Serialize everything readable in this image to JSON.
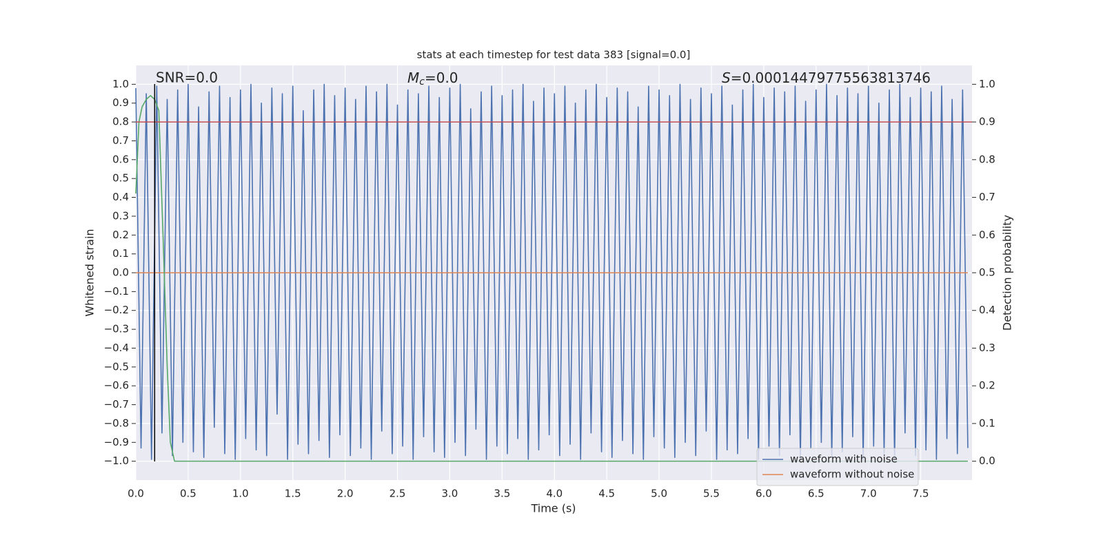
{
  "chart_data": {
    "type": "line",
    "title": "stats at each timestep for test data 383 [signal=0.0]",
    "xlabel": "Time (s)",
    "ylabel": "Whitened strain",
    "y2label": "Detection probability",
    "annotations": {
      "snr": "SNR=0.0",
      "mc_symbol": "M",
      "mc_subscript": "c",
      "mc_value": "=0.0",
      "s_symbol": "S",
      "s_value": "=0.00014479775563813746"
    },
    "xlim": [
      0,
      7.99
    ],
    "ylim": [
      -1.1,
      1.1
    ],
    "y2lim": [
      -0.05,
      1.05
    ],
    "xticks": [
      {
        "value": 0,
        "label": "0.0"
      },
      0.5,
      {
        "value": 1,
        "label": "1.0"
      },
      1.5,
      {
        "value": 2,
        "label": "2.0"
      },
      2.5,
      {
        "value": 3,
        "label": "3.0"
      },
      3.5,
      {
        "value": 4,
        "label": "4.0"
      },
      4.5,
      {
        "value": 5,
        "label": "5.0"
      },
      5.5,
      {
        "value": 6,
        "label": "6.0"
      },
      6.5,
      {
        "value": 7,
        "label": "7.0"
      },
      7.5
    ],
    "yticks": [
      {
        "value": -1,
        "label": "−1.0"
      },
      {
        "value": -0.9,
        "label": "−0.9"
      },
      {
        "value": -0.8,
        "label": "−0.8"
      },
      {
        "value": -0.7,
        "label": "−0.7"
      },
      {
        "value": -0.6,
        "label": "−0.6"
      },
      {
        "value": -0.5,
        "label": "−0.5"
      },
      {
        "value": -0.4,
        "label": "−0.4"
      },
      {
        "value": -0.3,
        "label": "−0.3"
      },
      {
        "value": -0.2,
        "label": "−0.2"
      },
      {
        "value": -0.1,
        "label": "−0.1"
      },
      {
        "value": 0,
        "label": "0.0"
      },
      0.1,
      0.2,
      0.3,
      0.4,
      0.5,
      0.6,
      0.7,
      0.8,
      0.9,
      {
        "value": 1,
        "label": "1.0"
      }
    ],
    "y2ticks": [
      {
        "value": 0,
        "label": "0.0"
      },
      0.1,
      0.2,
      0.3,
      0.4,
      0.5,
      0.6,
      0.7,
      0.8,
      0.9,
      {
        "value": 1,
        "label": "1.0"
      }
    ],
    "grid": true,
    "legend": "lower right",
    "series": [
      {
        "name": "waveform with noise",
        "color": "#4c72b0",
        "x": [
          0,
          0.05,
          0.1,
          0.15,
          0.2,
          0.25,
          0.3,
          0.35,
          0.4,
          0.45,
          0.5,
          0.55,
          0.6,
          0.65,
          0.7,
          0.75,
          0.8,
          0.85,
          0.9,
          0.95,
          1,
          1.05,
          1.1,
          1.15,
          1.2,
          1.25,
          1.3,
          1.35,
          1.4,
          1.45,
          1.5,
          1.55,
          1.6,
          1.65,
          1.7,
          1.75,
          1.8,
          1.85,
          1.9,
          1.95,
          2,
          2.05,
          2.1,
          2.15,
          2.2,
          2.25,
          2.3,
          2.35,
          2.4,
          2.45,
          2.5,
          2.55,
          2.6,
          2.65,
          2.7,
          2.75,
          2.8,
          2.85,
          2.9,
          2.95,
          3,
          3.05,
          3.1,
          3.15,
          3.2,
          3.25,
          3.3,
          3.35,
          3.4,
          3.45,
          3.5,
          3.55,
          3.6,
          3.65,
          3.7,
          3.75,
          3.8,
          3.85,
          3.9,
          3.95,
          4,
          4.05,
          4.1,
          4.15,
          4.2,
          4.25,
          4.3,
          4.35,
          4.4,
          4.45,
          4.5,
          4.55,
          4.6,
          4.65,
          4.7,
          4.75,
          4.8,
          4.85,
          4.9,
          4.95,
          5,
          5.05,
          5.1,
          5.15,
          5.2,
          5.25,
          5.3,
          5.35,
          5.4,
          5.45,
          5.5,
          5.55,
          5.6,
          5.65,
          5.7,
          5.75,
          5.8,
          5.85,
          5.9,
          5.95,
          6,
          6.05,
          6.1,
          6.15,
          6.2,
          6.25,
          6.3,
          6.35,
          6.4,
          6.45,
          6.5,
          6.55,
          6.6,
          6.65,
          6.7,
          6.75,
          6.8,
          6.85,
          6.9,
          6.95,
          7,
          7.05,
          7.1,
          7.15,
          7.2,
          7.25,
          7.3,
          7.35,
          7.4,
          7.45,
          7.5,
          7.55,
          7.6,
          7.65,
          7.7,
          7.75,
          7.8,
          7.85,
          7.9,
          7.95
        ],
        "values": [
          0.98,
          -0.93,
          0.95,
          -0.99,
          0.99,
          -0.85,
          0.92,
          -0.97,
          0.97,
          -0.9,
          1.0,
          -0.95,
          0.88,
          -0.98,
          0.96,
          -0.82,
          0.99,
          -0.96,
          0.93,
          -0.99,
          0.97,
          -0.88,
          1.0,
          -0.94,
          0.9,
          -0.97,
          0.98,
          -0.75,
          0.95,
          -0.99,
          0.99,
          -0.91,
          0.86,
          -0.96,
          0.97,
          -0.89,
          1.0,
          -0.98,
          0.94,
          -0.86,
          0.98,
          -0.97,
          0.92,
          -0.93,
          0.99,
          -0.99,
          0.96,
          -0.84,
          1.0,
          -0.96,
          0.89,
          -0.92,
          0.97,
          -0.99,
          0.95,
          -0.87,
          0.99,
          -0.95,
          0.93,
          -0.98,
          0.98,
          -0.9,
          1.0,
          -0.97,
          0.87,
          -0.83,
          0.96,
          -0.99,
          0.99,
          -0.92,
          0.94,
          -0.96,
          0.97,
          -0.88,
          1.0,
          -0.99,
          0.91,
          -0.94,
          0.98,
          -0.86,
          0.95,
          -0.97,
          0.99,
          -0.91,
          0.9,
          -0.99,
          0.97,
          -0.85,
          1.0,
          -0.95,
          0.93,
          -0.98,
          0.98,
          -0.89,
          0.96,
          -0.96,
          0.88,
          -0.99,
          0.99,
          -0.87,
          0.97,
          -0.93,
          0.94,
          -0.98,
          1.0,
          -0.9,
          0.92,
          -0.97,
          0.98,
          -0.84,
          0.95,
          -0.99,
          0.99,
          -0.94,
          0.89,
          -0.96,
          0.97,
          -0.88,
          1.0,
          -0.99,
          0.93,
          -0.92,
          0.98,
          -0.97,
          0.96,
          -0.86,
          0.99,
          -0.99,
          0.91,
          -0.93,
          0.97,
          -0.9,
          1.0,
          -0.98,
          0.94,
          -0.95,
          0.98,
          -0.87,
          0.95,
          -0.99,
          0.99,
          -0.92,
          0.9,
          -0.96,
          0.97,
          -0.99,
          1.0,
          -0.85,
          0.93,
          -0.97,
          0.98,
          -0.94,
          0.96,
          -0.99,
          0.99,
          -0.88,
          0.92,
          -0.96,
          0.97,
          -0.93
        ]
      },
      {
        "name": "waveform without noise",
        "color": "#dd8452",
        "x": [
          0,
          7.95
        ],
        "values": [
          0,
          0
        ]
      },
      {
        "color": "#55a868",
        "axis": "y2",
        "x": [
          0,
          0.03,
          0.06,
          0.1,
          0.14,
          0.18,
          0.22,
          0.26,
          0.3,
          0.33,
          0.37,
          0.5,
          7.95
        ],
        "values": [
          0.71,
          0.9,
          0.94,
          0.96,
          0.97,
          0.96,
          0.93,
          0.6,
          0.25,
          0.05,
          0,
          0,
          0
        ]
      }
    ],
    "threshold": {
      "value": 0.9,
      "axis": "y2",
      "color": "#c44e52"
    },
    "marker_x": {
      "value": 0.18,
      "color": "#000000"
    }
  }
}
